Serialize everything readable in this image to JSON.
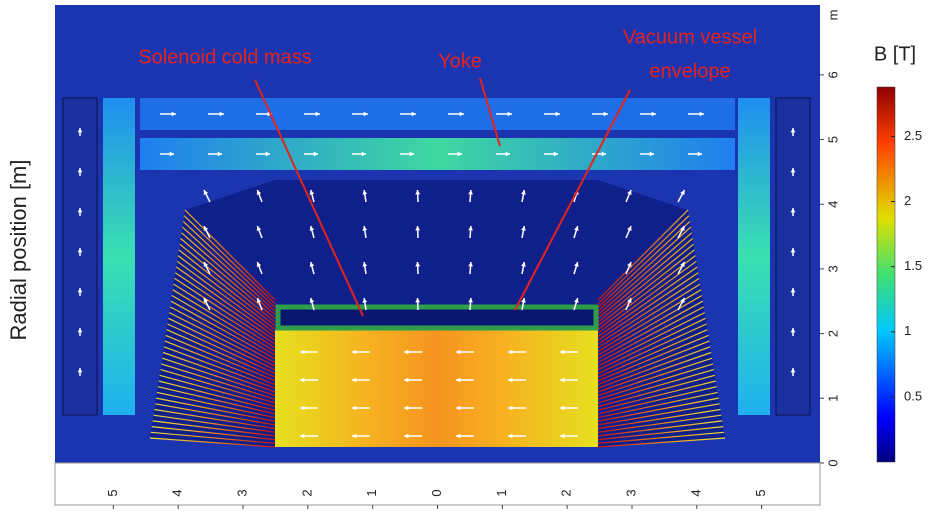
{
  "chart_data": {
    "type": "heatmap",
    "ylabel": "Radial position [m]",
    "yunit": "m",
    "xlim": [
      -5.9,
      5.9
    ],
    "ylim": [
      -0.65,
      7.08
    ],
    "xticks": [
      {
        "value": -5,
        "label": "5"
      },
      {
        "value": -4,
        "label": "4"
      },
      {
        "value": -3,
        "label": "3"
      },
      {
        "value": -2,
        "label": "2"
      },
      {
        "value": -1,
        "label": "1"
      },
      0,
      1,
      2,
      3,
      4,
      5
    ],
    "yticks": [
      0,
      1,
      2,
      3,
      4,
      5,
      6
    ],
    "annotations": [
      {
        "lines": [
          "Solenoid cold mass"
        ]
      },
      {
        "lines": [
          "Yoke"
        ]
      },
      {
        "lines": [
          "Vacuum vessel",
          "envelope"
        ]
      }
    ],
    "colorbar": {
      "label": "B [T]",
      "lim": [
        0,
        2.88
      ],
      "ticks": [
        0.5,
        1,
        1.5,
        2,
        2.5
      ]
    }
  }
}
